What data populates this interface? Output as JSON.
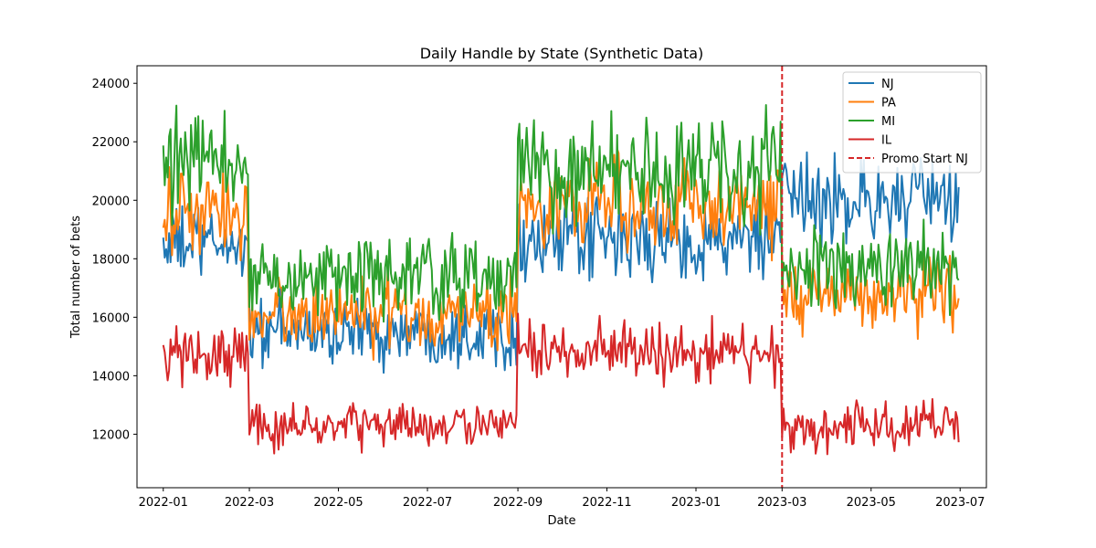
{
  "chart_data": {
    "type": "line",
    "title": "Daily Handle by State (Synthetic Data)",
    "xlabel": "Date",
    "ylabel": "Total number of bets",
    "x_range": [
      "2021-12-14",
      "2023-07-19"
    ],
    "ylim": [
      10170,
      24600
    ],
    "x_ticks": [
      "2022-01",
      "2022-03",
      "2022-05",
      "2022-07",
      "2022-09",
      "2022-11",
      "2023-01",
      "2023-03",
      "2023-05",
      "2023-07"
    ],
    "y_ticks": [
      12000,
      14000,
      16000,
      18000,
      20000,
      22000,
      24000
    ],
    "grid": false,
    "legend": "top-right",
    "x_start": "2022-01-01",
    "x_end": "2023-06-30",
    "series": [
      {
        "name": "NJ",
        "color": "#1f77b4",
        "regimes": [
          {
            "from": "2022-01-01",
            "to": "2022-02-28",
            "mean": 18500,
            "amp": 1100
          },
          {
            "from": "2022-03-01",
            "to": "2022-08-31",
            "mean": 15500,
            "amp": 1000
          },
          {
            "from": "2022-09-01",
            "to": "2023-02-28",
            "mean": 18600,
            "amp": 1200
          },
          {
            "from": "2023-03-01",
            "to": "2023-06-30",
            "mean": 20000,
            "amp": 1250
          }
        ]
      },
      {
        "name": "PA",
        "color": "#ff7f0e",
        "regimes": [
          {
            "from": "2022-01-01",
            "to": "2022-02-28",
            "mean": 19500,
            "amp": 1300
          },
          {
            "from": "2022-03-01",
            "to": "2022-08-31",
            "mean": 16100,
            "amp": 1100
          },
          {
            "from": "2022-09-01",
            "to": "2023-02-28",
            "mean": 19900,
            "amp": 1300
          },
          {
            "from": "2023-03-01",
            "to": "2023-06-30",
            "mean": 16800,
            "amp": 1150
          }
        ]
      },
      {
        "name": "MI",
        "color": "#2ca02c",
        "regimes": [
          {
            "from": "2022-01-01",
            "to": "2022-02-28",
            "mean": 21200,
            "amp": 1500
          },
          {
            "from": "2022-03-01",
            "to": "2022-08-31",
            "mean": 17400,
            "amp": 1200
          },
          {
            "from": "2022-09-01",
            "to": "2023-02-28",
            "mean": 21000,
            "amp": 1500
          },
          {
            "from": "2023-03-01",
            "to": "2023-06-30",
            "mean": 17700,
            "amp": 1200
          }
        ]
      },
      {
        "name": "IL",
        "color": "#d62728",
        "regimes": [
          {
            "from": "2022-01-01",
            "to": "2022-02-28",
            "mean": 14700,
            "amp": 850
          },
          {
            "from": "2022-03-01",
            "to": "2022-08-31",
            "mean": 12300,
            "amp": 700
          },
          {
            "from": "2022-09-01",
            "to": "2023-02-28",
            "mean": 14800,
            "amp": 900
          },
          {
            "from": "2023-03-01",
            "to": "2023-06-30",
            "mean": 12300,
            "amp": 750
          }
        ]
      }
    ],
    "annotations": [
      {
        "type": "vline",
        "x": "2023-03-01",
        "label": "Promo Start NJ",
        "color": "#d62728",
        "style": "dashed"
      }
    ]
  }
}
